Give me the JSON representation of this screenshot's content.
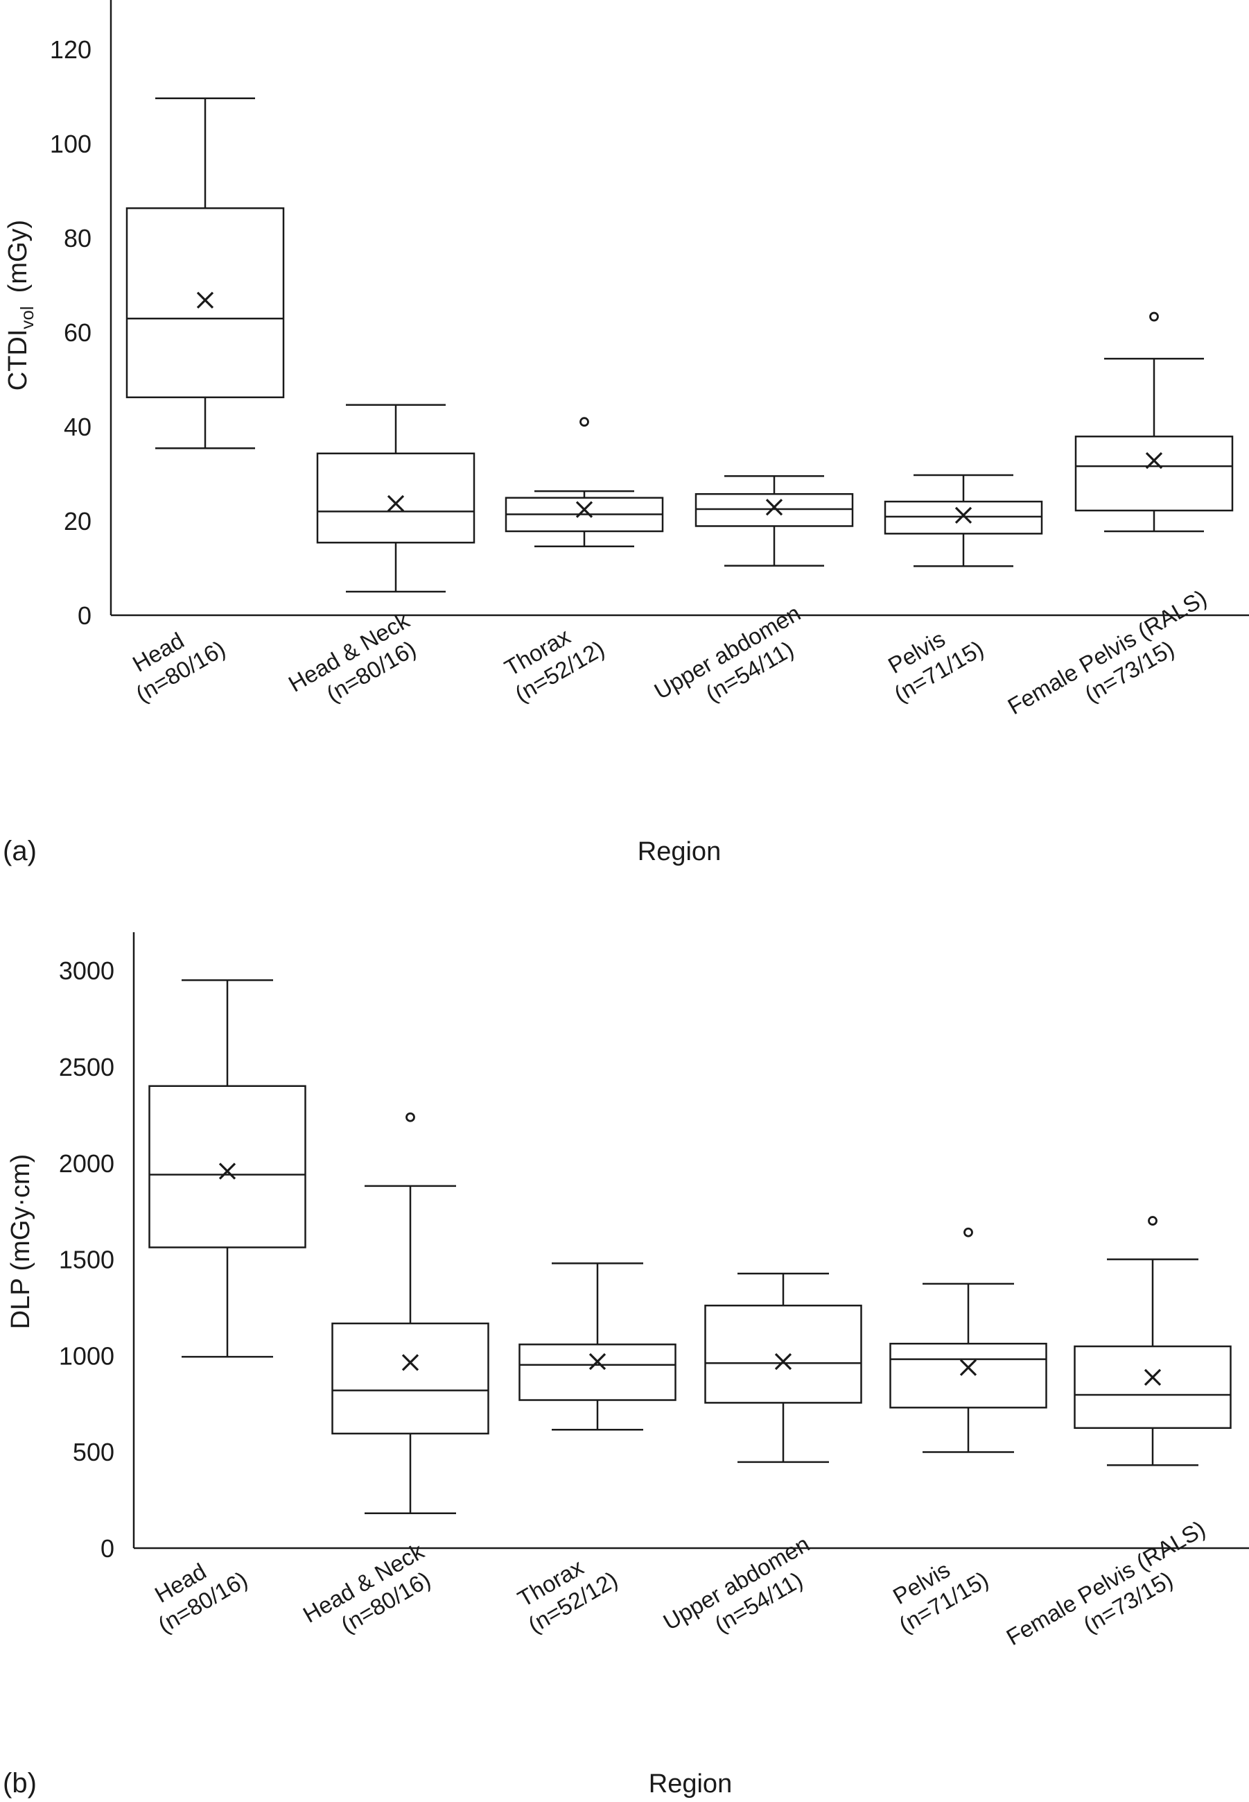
{
  "chart_data": [
    {
      "type": "box",
      "panel_label": "(a)",
      "title": "",
      "xlabel": "Region",
      "ylabel": "CTDI",
      "ylabel_sub": "vol",
      "ylabel_unit": "(mGy)",
      "ylim": [
        0,
        130
      ],
      "yticks": [
        0,
        20,
        40,
        60,
        80,
        100,
        120
      ],
      "grid": false,
      "categories": [
        {
          "name": "Head",
          "n": "(n=80/16)"
        },
        {
          "name": "Head & Neck",
          "n": "(n=80/16)"
        },
        {
          "name": "Thorax",
          "n": "(n=52/12)"
        },
        {
          "name": "Upper abdomen",
          "n": "(n=54/11)"
        },
        {
          "name": "Pelvis",
          "n": "(n=71/15)"
        },
        {
          "name": "Female Pelvis (RALS)",
          "n": "(n=73/15)"
        }
      ],
      "boxes": [
        {
          "whisker_low": 35.4,
          "q1": 46.2,
          "median": 62.9,
          "q3": 86.3,
          "whisker_high": 109.6,
          "mean": 66.8,
          "outliers": []
        },
        {
          "whisker_low": 5.0,
          "q1": 15.4,
          "median": 22.0,
          "q3": 34.3,
          "whisker_high": 44.6,
          "mean": 23.7,
          "outliers": []
        },
        {
          "whisker_low": 14.6,
          "q1": 17.8,
          "median": 21.4,
          "q3": 24.9,
          "whisker_high": 26.3,
          "mean": 22.4,
          "outliers": [
            41.0
          ]
        },
        {
          "whisker_low": 10.5,
          "q1": 18.9,
          "median": 22.5,
          "q3": 25.7,
          "whisker_high": 29.5,
          "mean": 22.9,
          "outliers": []
        },
        {
          "whisker_low": 10.4,
          "q1": 17.3,
          "median": 20.9,
          "q3": 24.1,
          "whisker_high": 29.7,
          "mean": 21.2,
          "outliers": []
        },
        {
          "whisker_low": 17.8,
          "q1": 22.2,
          "median": 31.6,
          "q3": 37.9,
          "whisker_high": 54.4,
          "mean": 32.8,
          "outliers": [
            63.3
          ]
        }
      ]
    },
    {
      "type": "box",
      "panel_label": "(b)",
      "title": "",
      "xlabel": "Region",
      "ylabel": "DLP (mGy·cm)",
      "ylim": [
        0,
        3200
      ],
      "yticks": [
        0,
        500,
        1000,
        1500,
        2000,
        2500,
        3000
      ],
      "grid": false,
      "categories": [
        {
          "name": "Head",
          "n": "(n=80/16)"
        },
        {
          "name": "Head & Neck",
          "n": "(n=80/16)"
        },
        {
          "name": "Thorax",
          "n": "(n=52/12)"
        },
        {
          "name": "Upper abdomen",
          "n": "(n=54/11)"
        },
        {
          "name": "Pelvis",
          "n": "(n=71/15)"
        },
        {
          "name": "Female Pelvis (RALS)",
          "n": "(n=73/15)"
        }
      ],
      "boxes": [
        {
          "whisker_low": 994,
          "q1": 1562,
          "median": 1940,
          "q3": 2400,
          "whisker_high": 2950,
          "mean": 1958,
          "outliers": []
        },
        {
          "whisker_low": 181,
          "q1": 595,
          "median": 819,
          "q3": 1167,
          "whisker_high": 1881,
          "mean": 964,
          "outliers": [
            2238
          ]
        },
        {
          "whisker_low": 615,
          "q1": 769,
          "median": 952,
          "q3": 1058,
          "whisker_high": 1479,
          "mean": 969,
          "outliers": []
        },
        {
          "whisker_low": 447,
          "q1": 755,
          "median": 961,
          "q3": 1260,
          "whisker_high": 1426,
          "mean": 969,
          "outliers": []
        },
        {
          "whisker_low": 499,
          "q1": 730,
          "median": 981,
          "q3": 1062,
          "whisker_high": 1373,
          "mean": 938,
          "outliers": [
            1640
          ]
        },
        {
          "whisker_low": 431,
          "q1": 624,
          "median": 796,
          "q3": 1048,
          "whisker_high": 1500,
          "mean": 887,
          "outliers": [
            1700
          ]
        }
      ]
    }
  ],
  "colors": {
    "ink": "#1a1a1a",
    "background": "#ffffff"
  }
}
